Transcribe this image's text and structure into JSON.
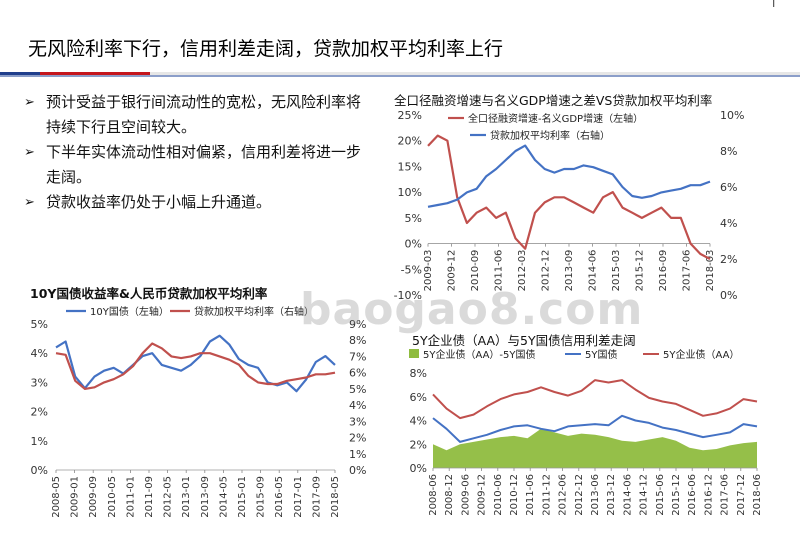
{
  "page": {
    "title": "无风险利率下行，信用利差走阔，贷款加权平均利率上行",
    "corner_mark": "l",
    "bullets": [
      "预计受益于银行间流动性的宽松，无风险利率将持续下行且空间较大。",
      "下半年实体流动性相对偏紧，信用利差将进一步走阔。",
      "贷款收益率仍处于小幅上升通道。"
    ],
    "watermark": "baogao8.com"
  },
  "colors": {
    "blue": "#4472c4",
    "red": "#c0504d",
    "green": "#8fbc3f",
    "accent_red": "#c4161c",
    "accent_blue": "#1f3e8c"
  },
  "chart_data": [
    {
      "id": "tsf",
      "type": "line",
      "title": "全口径融资增速与名义GDP增速之差VS贷款加权平均利率",
      "x_ticks": [
        "2009-03",
        "2009-12",
        "2010-09",
        "2011-06",
        "2012-03",
        "2012-12",
        "2013-09",
        "2014-06",
        "2015-03",
        "2015-12",
        "2016-09",
        "2017-06",
        "2018-03"
      ],
      "ylim_left": [
        -10,
        25
      ],
      "y_ticks_left": [
        "25%",
        "20%",
        "15%",
        "10%",
        "5%",
        "0%",
        "-5%",
        "-10%"
      ],
      "ylim_right": [
        0,
        10
      ],
      "y_ticks_right": [
        "10%",
        "8%",
        "6%",
        "4%",
        "2%",
        "0%"
      ],
      "series": [
        {
          "name": "全口径融资增速-名义GDP增速（左轴）",
          "axis": "left",
          "color": "#c0504d",
          "values": [
            19,
            21,
            20,
            9,
            4,
            6,
            7,
            5,
            6,
            1,
            -1,
            6,
            8,
            9,
            9,
            8,
            7,
            6,
            9,
            10,
            7,
            6,
            5,
            6,
            7,
            5,
            5,
            0,
            -2,
            -3
          ]
        },
        {
          "name": "贷款加权平均利率（右轴）",
          "axis": "right",
          "color": "#4472c4",
          "values": [
            4.9,
            5.0,
            5.1,
            5.3,
            5.7,
            5.9,
            6.6,
            7.0,
            7.5,
            8.0,
            8.3,
            7.5,
            7.0,
            6.8,
            7.0,
            7.0,
            7.2,
            7.1,
            6.9,
            6.7,
            6.0,
            5.5,
            5.4,
            5.5,
            5.7,
            5.8,
            5.9,
            6.1,
            6.1,
            6.3
          ]
        }
      ]
    },
    {
      "id": "ten_year",
      "type": "line",
      "title": "10Y国债收益率&人民币贷款加权平均利率",
      "x_ticks": [
        "2008-05",
        "2009-01",
        "2009-09",
        "2010-05",
        "2011-01",
        "2011-09",
        "2012-05",
        "2013-01",
        "2013-09",
        "2014-05",
        "2015-01",
        "2015-09",
        "2016-05",
        "2017-01",
        "2017-09",
        "2018-05"
      ],
      "ylim_left": [
        0,
        5
      ],
      "y_ticks_left": [
        "5%",
        "4%",
        "3%",
        "2%",
        "1%",
        "0%"
      ],
      "ylim_right": [
        0,
        9
      ],
      "y_ticks_right": [
        "9%",
        "8%",
        "7%",
        "6%",
        "5%",
        "4%",
        "3%",
        "2%",
        "1%",
        "0%"
      ],
      "series": [
        {
          "name": "10Y国债（左轴）",
          "axis": "left",
          "color": "#4472c4",
          "values": [
            4.2,
            4.4,
            3.2,
            2.8,
            3.2,
            3.4,
            3.5,
            3.3,
            3.6,
            3.9,
            4.0,
            3.6,
            3.5,
            3.4,
            3.6,
            3.9,
            4.4,
            4.6,
            4.3,
            3.8,
            3.6,
            3.5,
            3.0,
            2.9,
            3.0,
            2.7,
            3.1,
            3.7,
            3.9,
            3.6
          ]
        },
        {
          "name": "贷款加权平均利率（右轴）",
          "axis": "right",
          "color": "#c0504d",
          "values": [
            7.2,
            7.1,
            5.5,
            5.0,
            5.1,
            5.4,
            5.6,
            5.9,
            6.4,
            7.2,
            7.8,
            7.5,
            7.0,
            6.9,
            7.0,
            7.2,
            7.2,
            7.0,
            6.8,
            6.5,
            5.8,
            5.4,
            5.3,
            5.3,
            5.5,
            5.6,
            5.7,
            5.9,
            5.9,
            6.0
          ]
        }
      ]
    },
    {
      "id": "credit_spread",
      "type": "area",
      "title": "5Y企业债（AA）与5Y国债信用利差走阔",
      "x_ticks": [
        "2008-06",
        "2008-12",
        "2009-06",
        "2009-12",
        "2010-06",
        "2010-12",
        "2011-06",
        "2011-12",
        "2012-06",
        "2012-12",
        "2013-06",
        "2013-12",
        "2014-06",
        "2014-12",
        "2015-06",
        "2015-12",
        "2016-06",
        "2016-12",
        "2017-06",
        "2017-12",
        "2018-06"
      ],
      "ylim": [
        0,
        8
      ],
      "y_ticks": [
        "8%",
        "6%",
        "4%",
        "2%",
        "0%"
      ],
      "series": [
        {
          "name": "5Y企业债（AA）-5Y国债",
          "kind": "area",
          "color": "#8fbc3f",
          "values": [
            2.0,
            1.5,
            2.0,
            2.2,
            2.4,
            2.6,
            2.7,
            2.5,
            3.3,
            3.0,
            2.7,
            2.9,
            2.8,
            2.6,
            2.3,
            2.2,
            2.4,
            2.6,
            2.3,
            1.7,
            1.5,
            1.6,
            1.9,
            2.1,
            2.2
          ]
        },
        {
          "name": "5Y国债",
          "kind": "line",
          "color": "#4472c4",
          "values": [
            4.2,
            3.3,
            2.2,
            2.5,
            2.8,
            3.2,
            3.5,
            3.6,
            3.3,
            3.1,
            3.5,
            3.6,
            3.7,
            3.6,
            4.4,
            4.0,
            3.8,
            3.4,
            3.2,
            2.9,
            2.6,
            2.8,
            3.0,
            3.7,
            3.5
          ]
        },
        {
          "name": "5Y企业债（AA）",
          "kind": "line",
          "color": "#c0504d",
          "values": [
            6.2,
            5.0,
            4.2,
            4.5,
            5.2,
            5.8,
            6.2,
            6.4,
            6.8,
            6.4,
            6.1,
            6.5,
            7.4,
            7.2,
            7.4,
            6.6,
            5.9,
            5.6,
            5.4,
            4.9,
            4.4,
            4.6,
            5.0,
            5.8,
            5.6
          ]
        }
      ]
    }
  ]
}
